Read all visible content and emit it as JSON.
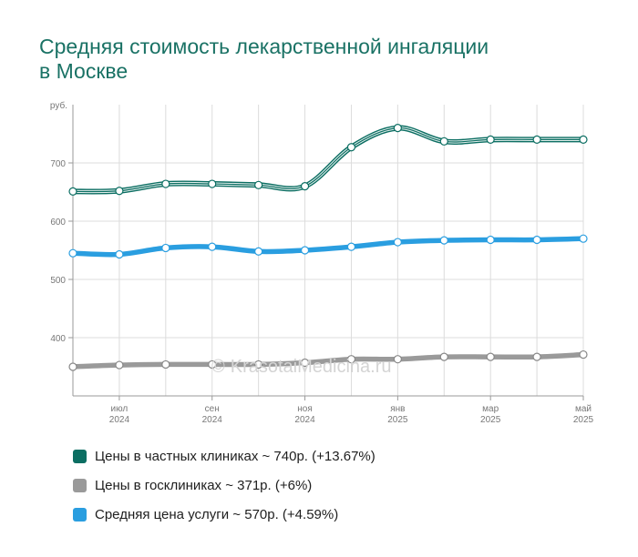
{
  "chart_data": {
    "type": "line",
    "title": [
      "Средняя стоимость лекарственной ингаляции",
      "в Москве"
    ],
    "yunit": "руб.",
    "ylim": [
      300,
      800
    ],
    "yticks": [
      400,
      500,
      600,
      700
    ],
    "x": [
      "2024-06",
      "2024-07",
      "2024-08",
      "2024-09",
      "2024-10",
      "2024-11",
      "2024-12",
      "2025-01",
      "2025-02",
      "2025-03",
      "2025-04",
      "2025-05"
    ],
    "xtick_labels": [
      {
        "month": "июл",
        "year": "2024"
      },
      {
        "month": "сен",
        "year": "2024"
      },
      {
        "month": "ноя",
        "year": "2024"
      },
      {
        "month": "янв",
        "year": "2025"
      },
      {
        "month": "мар",
        "year": "2025"
      },
      {
        "month": "май",
        "year": "2025"
      }
    ],
    "grid": true,
    "series": [
      {
        "name": "Цены в частных клиниках",
        "color": "#0b6e62",
        "style": "striped",
        "values": [
          651,
          652,
          664,
          664,
          662,
          660,
          727,
          760,
          737,
          740,
          740,
          740
        ]
      },
      {
        "name": "Цены в госклиниках",
        "color": "#9a9a9a",
        "style": "solid",
        "values": [
          350,
          353,
          354,
          354,
          354,
          357,
          363,
          363,
          367,
          367,
          367,
          371
        ]
      },
      {
        "name": "Средняя цена услуги",
        "color": "#2a9ee0",
        "style": "solid",
        "values": [
          545,
          543,
          554,
          556,
          548,
          550,
          556,
          564,
          567,
          568,
          568,
          570
        ]
      }
    ]
  },
  "legend": [
    {
      "label": "Цены в частных клиниках ~ 740р. (+13.67%)",
      "color": "#0b6e62"
    },
    {
      "label": "Цены в госклиниках ~ 371р. (+6%)",
      "color": "#9a9a9a"
    },
    {
      "label": "Средняя цена услуги ~ 570р. (+4.59%)",
      "color": "#2a9ee0"
    }
  ],
  "watermark": {
    "symbol": "©",
    "text": "KrasotaiMedicina.ru"
  }
}
